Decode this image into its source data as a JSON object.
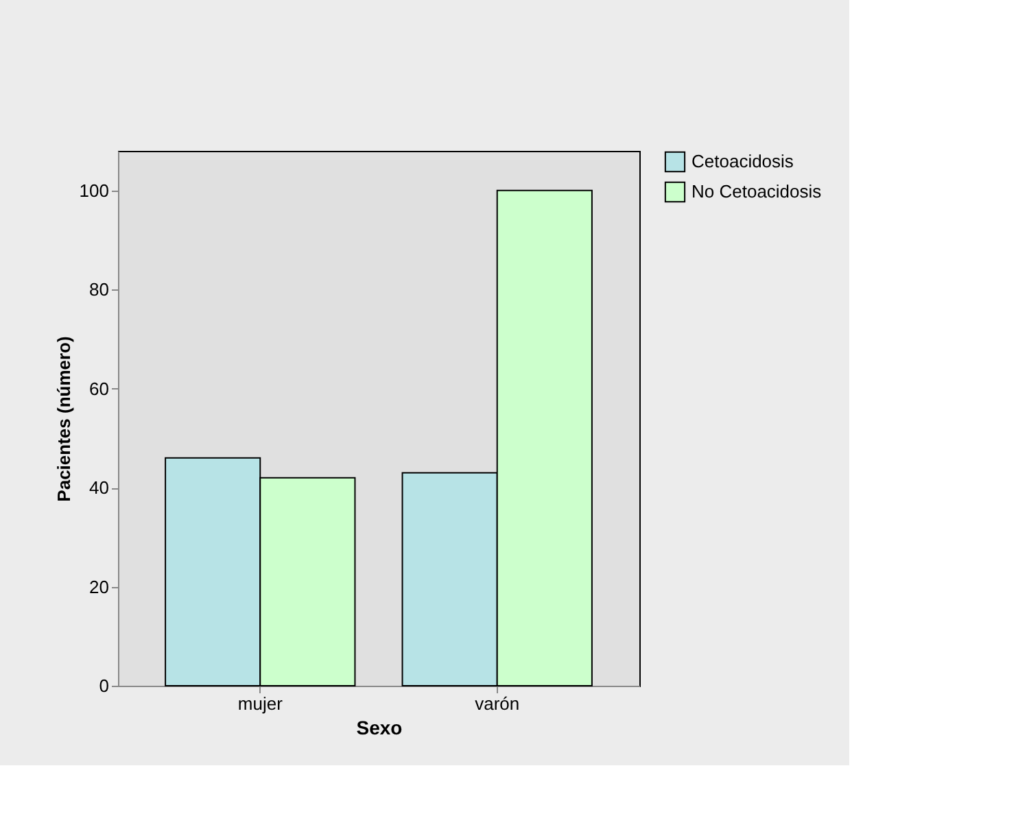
{
  "chart_data": {
    "type": "bar",
    "xlabel": "Sexo",
    "ylabel": "Pacientes (número)",
    "categories": [
      "mujer",
      "varón"
    ],
    "series": [
      {
        "name": "Cetoacidosis",
        "color": "#b7e3e6",
        "values": [
          46,
          43
        ]
      },
      {
        "name": "No Cetoacidosis",
        "color": "#ccffcc",
        "values": [
          42,
          100
        ]
      }
    ],
    "ylim": [
      0,
      108
    ],
    "yticks": [
      0,
      20,
      40,
      60,
      80,
      100
    ],
    "grid": false,
    "legend": "top right"
  }
}
